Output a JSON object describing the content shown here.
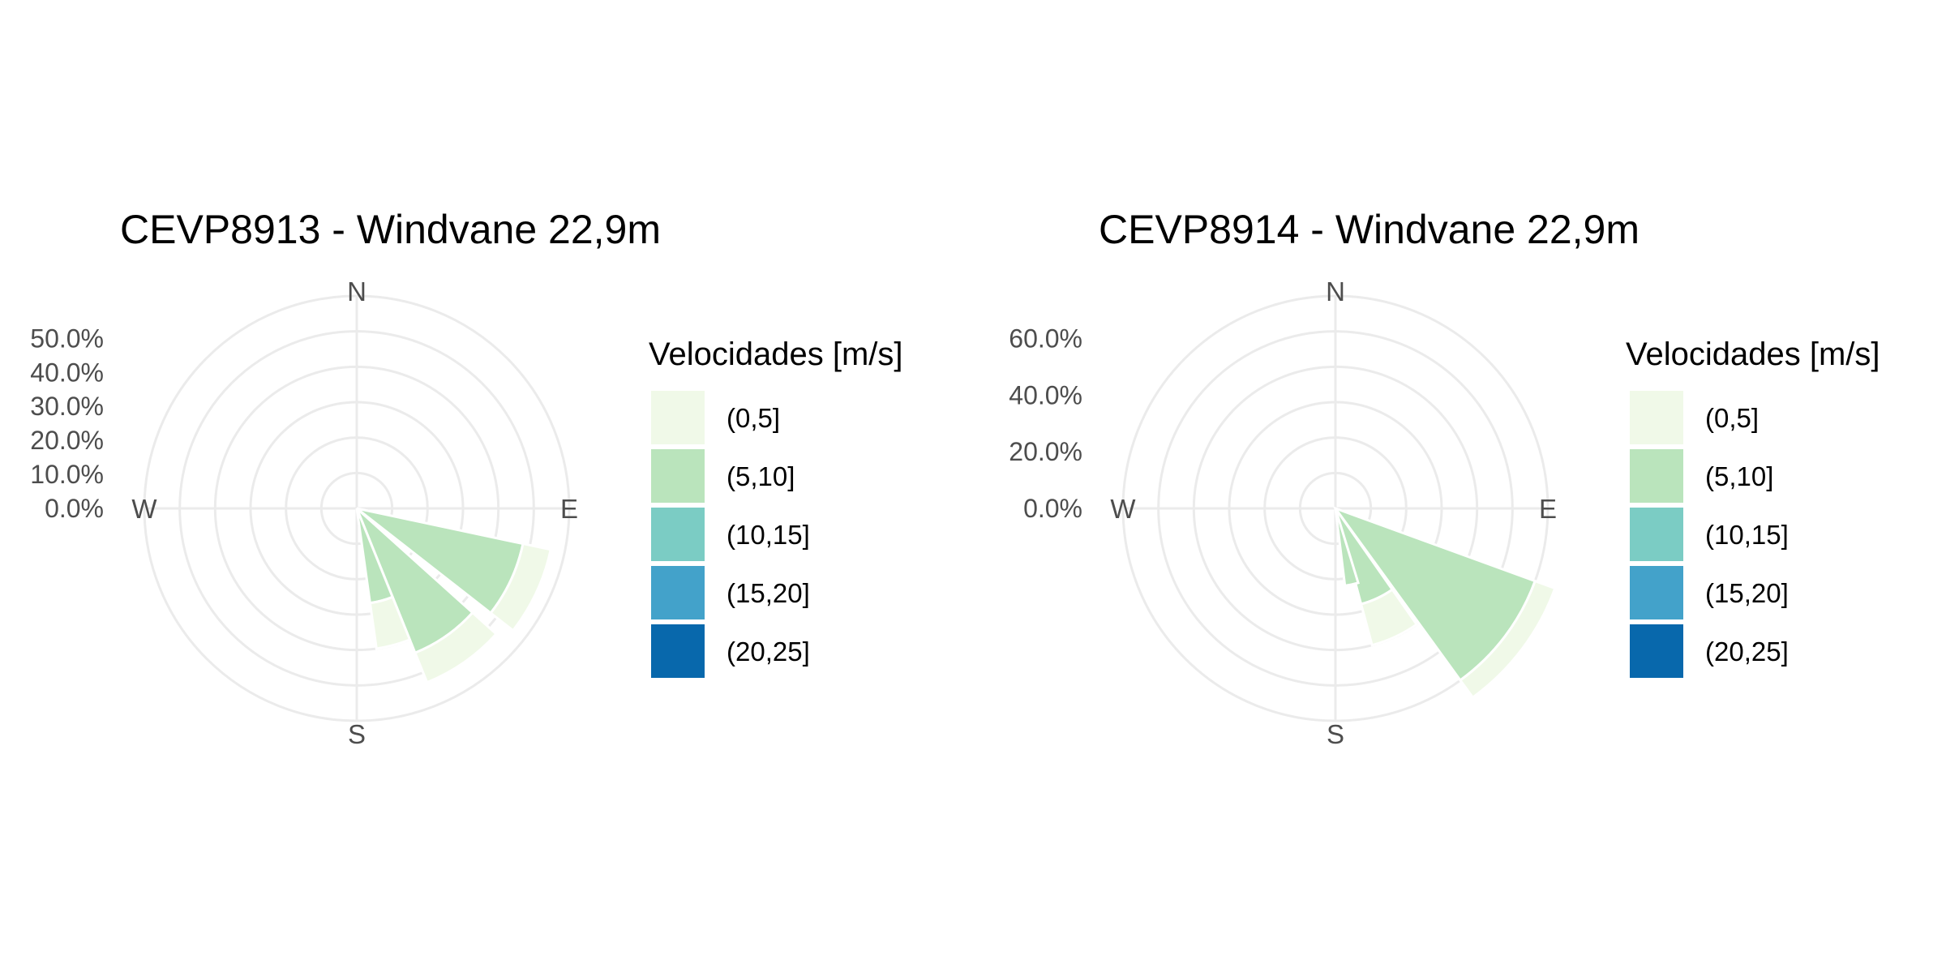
{
  "chart_data": [
    {
      "type": "windrose",
      "title": "CEVP8913 - Windvane 22,9m",
      "legend_title": "Velocidades [m/s]",
      "legend_placement": "right",
      "directions": [
        "N",
        "E",
        "S",
        "W"
      ],
      "bins": [
        "(0,5]",
        "(5,10]",
        "(10,15]",
        "(15,20]",
        "(20,25]"
      ],
      "bin_colors": [
        "#f0f9e8",
        "#bae4bc",
        "#7bccc4",
        "#43a2ca",
        "#0868ac"
      ],
      "r_ticks": [
        "0.0%",
        "10.0%",
        "20.0%",
        "30.0%",
        "40.0%",
        "50.0%"
      ],
      "r_max": 60,
      "sectors": [
        {
          "center_deg": 115,
          "width_deg": 26,
          "stack": [
            {
              "bin": "(5,10]",
              "value": 48
            },
            {
              "bin": "(0,5]",
              "value": 8
            }
          ]
        },
        {
          "center_deg": 145,
          "width_deg": 26,
          "stack": [
            {
              "bin": "(5,10]",
              "value": 44
            },
            {
              "bin": "(0,5]",
              "value": 9
            }
          ]
        },
        {
          "center_deg": 165,
          "width_deg": 14,
          "stack": [
            {
              "bin": "(5,10]",
              "value": 27
            },
            {
              "bin": "(0,5]",
              "value": 13
            }
          ]
        }
      ]
    },
    {
      "type": "windrose",
      "title": "CEVP8914 - Windvane 22,9m",
      "legend_title": "Velocidades [m/s]",
      "legend_placement": "right",
      "directions": [
        "N",
        "E",
        "S",
        "W"
      ],
      "bins": [
        "(0,5]",
        "(5,10]",
        "(10,15]",
        "(15,20]",
        "(20,25]"
      ],
      "bin_colors": [
        "#f0f9e8",
        "#bae4bc",
        "#7bccc4",
        "#43a2ca",
        "#0868ac"
      ],
      "r_ticks": [
        "0.0%",
        "20.0%",
        "40.0%",
        "60.0%"
      ],
      "r_max": 60,
      "sectors": [
        {
          "center_deg": 127,
          "width_deg": 34,
          "stack": [
            {
              "bin": "(5,10]",
              "value": 60
            },
            {
              "bin": "(0,5]",
              "value": 6
            }
          ]
        },
        {
          "center_deg": 155,
          "width_deg": 20,
          "stack": [
            {
              "bin": "(5,10]",
              "value": 28
            },
            {
              "bin": "(0,5]",
              "value": 12
            }
          ]
        },
        {
          "center_deg": 168,
          "width_deg": 10,
          "stack": [
            {
              "bin": "(5,10]",
              "value": 22
            }
          ]
        }
      ]
    }
  ]
}
